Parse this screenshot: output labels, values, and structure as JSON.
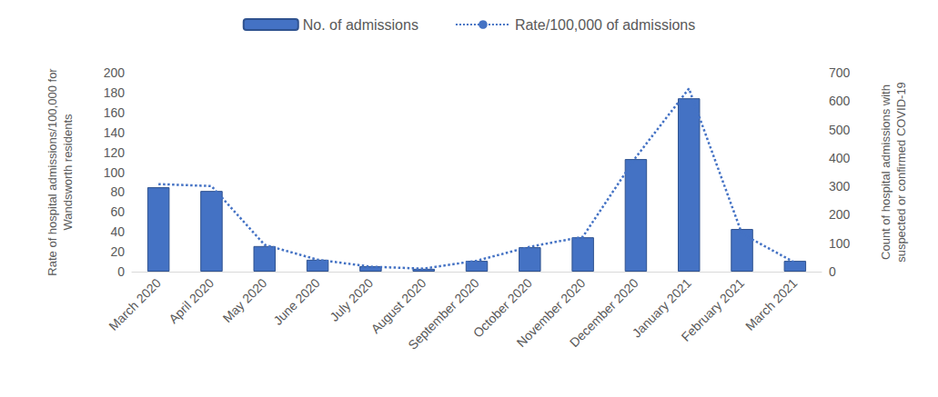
{
  "chart_data": {
    "type": "bar",
    "categories": [
      "March 2020",
      "April 2020",
      "May 2020",
      "June 2020",
      "July 2020",
      "August 2020",
      "September 2020",
      "October 2020",
      "November 2020",
      "December 2020",
      "January 2021",
      "February 2021",
      "March 2021"
    ],
    "ylabel": "Rate of hospital admissions/100,000 for\nWandsworth residents",
    "y2label": "Count of hospital admissions with\nsuspected or confirmed COVID-19",
    "ylim": [
      0,
      200
    ],
    "yticks": [
      0,
      20,
      40,
      60,
      80,
      100,
      120,
      140,
      160,
      180,
      200
    ],
    "y2lim": [
      0,
      700
    ],
    "y2ticks": [
      0,
      100,
      200,
      300,
      400,
      500,
      600,
      700
    ],
    "grid": false,
    "legend": "top",
    "series": [
      {
        "name": "No. of admissions",
        "type": "bar",
        "axis": "y2",
        "color": "#4472c4",
        "values": [
          297,
          284,
          90,
          42,
          19,
          10,
          38,
          86,
          121,
          396,
          610,
          150,
          38
        ]
      },
      {
        "name": "Rate/100,000 of admissions",
        "type": "line",
        "line_style": "dotted",
        "color": "#4472c4",
        "values": [
          88,
          86,
          27,
          12,
          5,
          3,
          11,
          25,
          35,
          115,
          184,
          38,
          9
        ]
      }
    ]
  }
}
